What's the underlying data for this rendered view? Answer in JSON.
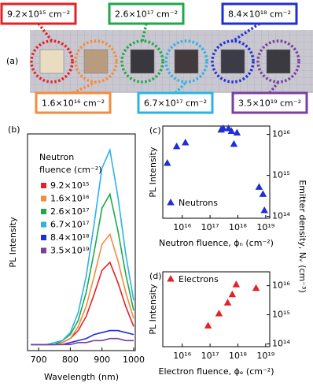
{
  "photo_panel": {
    "panel_label": "(a)",
    "samples": [
      {
        "fluence": "9.2×10¹⁵ cm⁻²",
        "color": "#e32228"
      },
      {
        "fluence": "1.6×10¹⁶ cm⁻²",
        "color": "#f58b3c"
      },
      {
        "fluence": "2.6×10¹⁷ cm⁻²",
        "color": "#1fa84a"
      },
      {
        "fluence": "6.7×10¹⁷ cm⁻²",
        "color": "#2bb3e8"
      },
      {
        "fluence": "8.4×10¹⁸ cm⁻²",
        "color": "#1f2fd6"
      },
      {
        "fluence": "3.5×10¹⁹ cm⁻²",
        "color": "#7a3fa0"
      }
    ]
  },
  "chart_data": [
    {
      "type": "line",
      "panel_label": "(b)",
      "xlabel": "Wavelength (nm)",
      "ylabel": "PL Intensity",
      "legend_title": [
        "Neutron",
        "fluence (cm⁻²)"
      ],
      "x": [
        675,
        700,
        725,
        750,
        775,
        800,
        825,
        850,
        875,
        900,
        925,
        950,
        975,
        1000
      ],
      "xlim": [
        665,
        1005
      ],
      "xticks": [
        700,
        800,
        900,
        1000
      ],
      "ylim": [
        -0.03,
        1.05
      ],
      "series": [
        {
          "name": "9.2×10¹⁵",
          "color": "#e32228",
          "values": [
            0,
            0,
            0,
            0,
            0.01,
            0.03,
            0.07,
            0.14,
            0.25,
            0.37,
            0.41,
            0.31,
            0.19,
            0.09
          ]
        },
        {
          "name": "1.6×10¹⁶",
          "color": "#f58b3c",
          "values": [
            0,
            0,
            0,
            0,
            0.01,
            0.03,
            0.09,
            0.19,
            0.34,
            0.5,
            0.55,
            0.42,
            0.26,
            0.13
          ]
        },
        {
          "name": "2.6×10¹⁷",
          "color": "#1fa84a",
          "values": [
            0,
            0,
            0,
            0,
            0.02,
            0.05,
            0.12,
            0.26,
            0.46,
            0.68,
            0.75,
            0.57,
            0.35,
            0.17
          ]
        },
        {
          "name": "6.7×10¹⁷",
          "color": "#2bb3e8",
          "values": [
            0,
            0,
            0,
            0.01,
            0.02,
            0.06,
            0.16,
            0.34,
            0.6,
            0.88,
            0.97,
            0.74,
            0.45,
            0.22
          ]
        },
        {
          "name": "8.4×10¹⁸",
          "color": "#1f2fd6",
          "values": [
            0,
            0,
            0,
            0,
            0,
            0.01,
            0.02,
            0.03,
            0.05,
            0.06,
            0.07,
            0.07,
            0.06,
            0.05
          ]
        },
        {
          "name": "3.5×10¹⁹",
          "color": "#7a3fa0",
          "values": [
            0,
            0,
            0,
            0,
            0,
            0,
            0.01,
            0.01,
            0.02,
            0.02,
            0.03,
            0.03,
            0.02,
            0.02
          ]
        }
      ]
    },
    {
      "type": "scatter",
      "panel_label": "(c)",
      "xlabel": "Neutron fluence, ϕₙ (cm⁻²)",
      "ylabel": "PL Intensity",
      "ylabel_right": "Emitter density, Nᵥ (cm⁻³)",
      "xlog": true,
      "ylog": true,
      "legend": "lower left",
      "xlim": [
        2000000000000000.0,
        1.4e+19
      ],
      "ylim": [
        90000000000000.0,
        1.6e+16
      ],
      "xticks": [
        {
          "value": 1e+16,
          "label": "10¹⁶"
        },
        {
          "value": 1e+17,
          "label": "10¹⁷"
        },
        {
          "value": 1e+18,
          "label": "10¹⁸"
        },
        {
          "value": 1e+19,
          "label": "10¹⁹"
        }
      ],
      "yticks": [
        {
          "value": 100000000000000.0,
          "label": "10¹⁴"
        },
        {
          "value": 1000000000000000.0,
          "label": "10¹⁵"
        },
        {
          "value": 1e+16,
          "label": "10¹⁶"
        }
      ],
      "x": [
        2900000000000000.0,
        6300000000000000.0,
        1.3e+16,
        2.5e+17,
        3e+17,
        4.6e+17,
        5.9e+17,
        7.2e+17,
        9.3e+17,
        5.8e+18,
        8e+18,
        9e+18
      ],
      "series": [
        {
          "name": "Neutrons",
          "color": "#1f2fd6",
          "values": [
            2000000000000000.0,
            5100000000000000.0,
            6300000000000000.0,
            1.3e+16,
            1.4e+16,
            1.4e+16,
            1.2e+16,
            5800000000000000.0,
            1.1e+16,
            520000000000000.0,
            350000000000000.0,
            140000000000000.0
          ]
        }
      ]
    },
    {
      "type": "scatter",
      "panel_label": "(d)",
      "xlabel": "Electron fluence, ϕₑ (cm⁻²)",
      "ylabel": "PL Intensity",
      "xlog": true,
      "ylog": true,
      "legend": "upper left",
      "xlim": [
        2000000000000000.0,
        1.4e+19
      ],
      "ylim": [
        80000000000000.0,
        3e+16
      ],
      "xticks": [
        {
          "value": 1e+16,
          "label": "10¹⁶"
        },
        {
          "value": 1e+17,
          "label": "10¹⁷"
        },
        {
          "value": 1e+18,
          "label": "10¹⁸"
        },
        {
          "value": 1e+19,
          "label": "10¹⁹"
        }
      ],
      "yticks": [
        {
          "value": 100000000000000.0,
          "label": "10¹⁴"
        },
        {
          "value": 1000000000000000.0,
          "label": "10¹⁵"
        },
        {
          "value": 1e+16,
          "label": "10¹⁶"
        }
      ],
      "x": [
        8.5e+16,
        2.1e+17,
        4.3e+17,
        6.3e+17,
        8.7e+17,
        4.5e+18
      ],
      "series": [
        {
          "name": "Electrons",
          "color": "#e32228",
          "values": [
            420000000000000.0,
            1100000000000000.0,
            2600000000000000.0,
            5000000000000000.0,
            1.1e+16,
            8200000000000000.0
          ]
        }
      ]
    }
  ]
}
